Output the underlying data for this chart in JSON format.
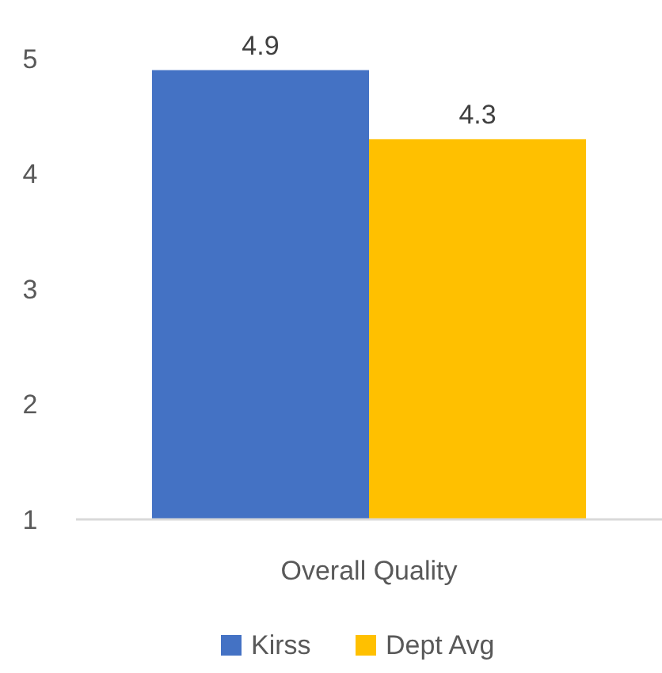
{
  "chart_data": {
    "type": "bar",
    "categories": [
      "Overall Quality"
    ],
    "series": [
      {
        "name": "Kirss",
        "color": "#4472c4",
        "values": [
          4.9
        ]
      },
      {
        "name": "Dept Avg",
        "color": "#ffc000",
        "values": [
          4.3
        ]
      }
    ],
    "ylim": [
      1,
      5
    ],
    "yticks": [
      1,
      2,
      3,
      4,
      5
    ],
    "grid": false,
    "data_labels": true,
    "legend": "bottom"
  }
}
